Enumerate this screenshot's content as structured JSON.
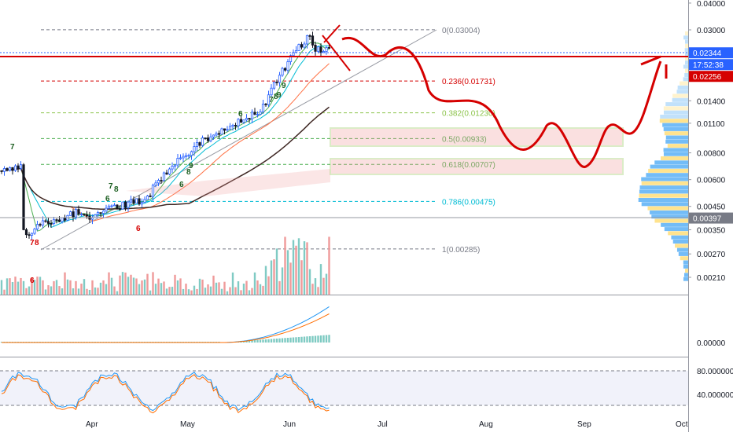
{
  "chart_data": {
    "type": "candlestick",
    "scale": "log",
    "price_axis_ticks": [
      "0.04000",
      "0.03000",
      "0.01400",
      "0.01100",
      "0.00800",
      "0.00600",
      "0.00450",
      "0.00350",
      "0.00270",
      "0.00210"
    ],
    "price_axis_tick_values": [
      0.04,
      0.03,
      0.014,
      0.011,
      0.008,
      0.006,
      0.0045,
      0.0035,
      0.0027,
      0.0021
    ],
    "badges": [
      {
        "text": "0.02344",
        "value": 0.02344,
        "color": "#2962ff"
      },
      {
        "text": "17:52:38",
        "value": 0.0212,
        "color": "#2962ff"
      },
      {
        "text": "0.02256",
        "value": 0.02256,
        "color": "#d50000"
      },
      {
        "text": "0.00397",
        "value": 0.00397,
        "color": "#787b86"
      }
    ],
    "fib_levels": [
      {
        "ratio": "0",
        "price": "0.03004",
        "label": "0(0.03004)",
        "value": 0.03004,
        "color": "#787b86"
      },
      {
        "ratio": "0.236",
        "price": "0.01731",
        "label": "0.236(0.01731)",
        "value": 0.01731,
        "color": "#d50000"
      },
      {
        "ratio": "0.382",
        "price": "0.01230",
        "label": "0.382(0.01230)",
        "value": 0.0123,
        "color": "#8bc34a"
      },
      {
        "ratio": "0.5",
        "price": "0.00933",
        "label": "0.5(0.00933)",
        "value": 0.00933,
        "color": "#4caf50"
      },
      {
        "ratio": "0.618",
        "price": "0.00707",
        "label": "0.618(0.00707)",
        "value": 0.00707,
        "color": "#4caf50"
      },
      {
        "ratio": "0.786",
        "price": "0.00475",
        "label": "0.786(0.00475)",
        "value": 0.00475,
        "color": "#00bcd4"
      },
      {
        "ratio": "1",
        "price": "0.00285",
        "label": "1(0.00285)",
        "value": 0.00285,
        "color": "#787b86"
      }
    ],
    "time_axis": [
      "Apr",
      "May",
      "Jun",
      "Jul",
      "Aug",
      "Sep",
      "Oct"
    ],
    "td_labels": [
      {
        "text": "7",
        "color": "green"
      },
      {
        "text": "7",
        "color": "green"
      },
      {
        "text": "8",
        "color": "green"
      },
      {
        "text": "6",
        "color": "green"
      },
      {
        "text": "7",
        "color": "green"
      },
      {
        "text": "8",
        "color": "green"
      },
      {
        "text": "9",
        "color": "green"
      },
      {
        "text": "6",
        "color": "green"
      },
      {
        "text": "8",
        "color": "green"
      },
      {
        "text": "9",
        "color": "green"
      },
      {
        "text": "6",
        "color": "green"
      },
      {
        "text": "9",
        "color": "green"
      },
      {
        "text": "7",
        "color": "red"
      },
      {
        "text": "8",
        "color": "red"
      },
      {
        "text": "6",
        "color": "red"
      },
      {
        "text": "6",
        "color": "red"
      }
    ],
    "candles": [],
    "macd": {
      "ticks": [
        "0.00000"
      ]
    },
    "stoch_rsi": {
      "ticks": [
        "80.000000",
        "40.000000"
      ],
      "bands": [
        80,
        20
      ]
    }
  }
}
